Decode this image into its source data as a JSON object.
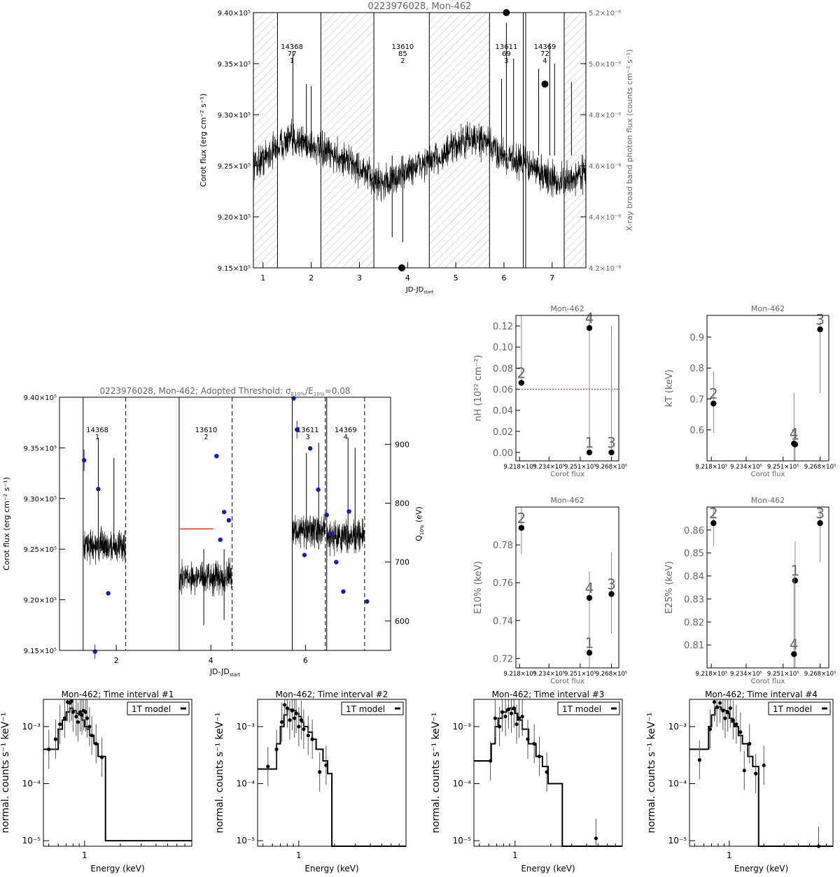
{
  "chart_data": [
    {
      "id": "lc",
      "type": "line",
      "title": "0223976028, Mon-462",
      "xlabel": "JD-JD",
      "xlabel_sub": "start",
      "ylabel": "Corot flux (erg cm⁻² s⁻¹)",
      "ylabel_right": "X-ray broad band photon flux (counts cm⁻² s⁻¹)",
      "xlim": [
        0.8,
        7.7
      ],
      "ylim": [
        915000,
        940000
      ],
      "ylim_right": [
        4.2e-06,
        5.2e-06
      ],
      "xticks": [
        "1",
        "2",
        "3",
        "4",
        "5",
        "6",
        "7"
      ],
      "yticks": [
        "9.15×10⁵",
        "9.20×10⁵",
        "9.25×10⁵",
        "9.30×10⁵",
        "9.35×10⁵",
        "9.40×10⁵"
      ],
      "yticks_right": [
        "4.2×10⁻⁶",
        "4.4×10⁻⁶",
        "4.6×10⁻⁶",
        "4.8×10⁻⁶",
        "5.0×10⁻⁶",
        "5.2×10⁻⁶"
      ],
      "hatched_gaps": [
        [
          0.8,
          1.3
        ],
        [
          2.2,
          3.3
        ],
        [
          4.45,
          5.7
        ],
        [
          7.25,
          7.7
        ]
      ],
      "segments": [
        {
          "label": [
            "14368",
            "77",
            "1"
          ],
          "x": 1.6
        },
        {
          "label": [
            "13610",
            "85",
            "2"
          ],
          "x": 3.9
        },
        {
          "label": [
            "13611",
            "69",
            "3"
          ],
          "x": 6.05
        },
        {
          "label": [
            "14369",
            "72",
            "4"
          ],
          "x": 6.85
        }
      ],
      "xray_points": [
        {
          "x": 3.88,
          "y": 4.2e-06
        },
        {
          "x": 6.05,
          "y": 5.2e-06
        },
        {
          "x": 6.85,
          "y": 4.92e-06
        }
      ]
    },
    {
      "id": "q10",
      "type": "line",
      "title": "0223976028, Mon-462; Adopted Threshold: σ",
      "title_sub1": "E10%",
      "title_mid": "/E",
      "title_sub2": "10%",
      "title_end": "=0.08",
      "xlabel": "JD-JD",
      "xlabel_sub": "start",
      "ylabel": "Corot flux (erg cm⁻² s⁻¹)",
      "ylabel_right": "Q",
      "ylabel_right_sub": "10%",
      "ylabel_right_unit": "(eV)",
      "xlim": [
        0.8,
        7.8
      ],
      "ylim": [
        915000,
        940000
      ],
      "ylim_right": [
        550,
        980
      ],
      "xticks": [
        "2",
        "4",
        "6"
      ],
      "yticks": [
        "9.15×10⁵",
        "9.20×10⁵",
        "9.25×10⁵",
        "9.30×10⁵",
        "9.35×10⁵",
        "9.40×10⁵"
      ],
      "yticks_right": [
        "600",
        "700",
        "800",
        "900"
      ],
      "segments": [
        {
          "label": [
            "14368",
            "1"
          ],
          "x": 1.6
        },
        {
          "label": [
            "13610",
            "2"
          ],
          "x": 3.9
        },
        {
          "label": [
            "13611",
            "3"
          ],
          "x": 6.05
        },
        {
          "label": [
            "14369",
            "4"
          ],
          "x": 6.85
        }
      ],
      "threshold_line": {
        "x": [
          3.35,
          4.05
        ],
        "y": 927000
      },
      "q_points": [
        {
          "x": 1.32,
          "y": 873,
          "err": 18
        },
        {
          "x": 1.62,
          "y": 824,
          "err": 0
        },
        {
          "x": 1.83,
          "y": 647,
          "err": 0
        },
        {
          "x": 1.55,
          "y": 548,
          "err": 12
        },
        {
          "x": 4.12,
          "y": 880,
          "err": 0
        },
        {
          "x": 4.2,
          "y": 738,
          "err": 0
        },
        {
          "x": 4.28,
          "y": 785,
          "err": 0
        },
        {
          "x": 4.38,
          "y": 771,
          "err": 0
        },
        {
          "x": 5.75,
          "y": 978,
          "err": 0
        },
        {
          "x": 5.82,
          "y": 925,
          "err": 15
        },
        {
          "x": 5.98,
          "y": 712,
          "err": 0
        },
        {
          "x": 6.1,
          "y": 893,
          "err": 0
        },
        {
          "x": 6.27,
          "y": 823,
          "err": 0
        },
        {
          "x": 6.45,
          "y": 780,
          "err": 0
        },
        {
          "x": 6.52,
          "y": 748,
          "err": 0
        },
        {
          "x": 6.65,
          "y": 700,
          "err": 0
        },
        {
          "x": 6.8,
          "y": 650,
          "err": 0
        },
        {
          "x": 6.92,
          "y": 786,
          "err": 0
        },
        {
          "x": 7.3,
          "y": 633,
          "err": 0
        }
      ]
    },
    {
      "id": "nh",
      "type": "scatter",
      "title": "Mon-462",
      "xlabel": "Corot flux",
      "ylabel": "nH (10²² cm⁻²)",
      "xlim": [
        921600,
        927200
      ],
      "ylim": [
        -0.008,
        0.13
      ],
      "xticks": [
        "9.218×10⁵",
        "9.234×10⁵",
        "9.251×10⁵",
        "9.268×10⁵"
      ],
      "yticks": [
        "0.00",
        "0.02",
        "0.04",
        "0.06",
        "0.08",
        "0.10",
        "0.12"
      ],
      "ref_line": 0.06,
      "points": [
        {
          "label": "2",
          "x": 921900,
          "y": 0.066,
          "lo": 0.066,
          "hi": 0.13
        },
        {
          "label": "4",
          "x": 925600,
          "y": 0.118,
          "lo": 0.0,
          "hi": 0.13
        },
        {
          "label": "1",
          "x": 925600,
          "y": 0.0,
          "lo": 0.0,
          "hi": 0.1
        },
        {
          "label": "3",
          "x": 926800,
          "y": 0.0,
          "lo": 0.0,
          "hi": 0.12
        }
      ]
    },
    {
      "id": "kt",
      "type": "scatter",
      "title": "Mon-462",
      "xlabel": "Corot flux",
      "ylabel": "kT (keV)",
      "xlim": [
        921600,
        927200
      ],
      "ylim": [
        0.5,
        0.97
      ],
      "xticks": [
        "9.218×10⁵",
        "9.234×10⁵",
        "9.251×10⁵",
        "9.268×10⁵"
      ],
      "yticks": [
        "0.6",
        "0.7",
        "0.8",
        "0.9"
      ],
      "points": [
        {
          "label": "2",
          "x": 921900,
          "y": 0.685,
          "lo": 0.59,
          "hi": 0.79
        },
        {
          "label": "4",
          "x": 925600,
          "y": 0.556,
          "lo": 0.5,
          "hi": 0.72
        },
        {
          "label": "1",
          "x": 925650,
          "y": 0.553,
          "lo": 0.5,
          "hi": 0.6
        },
        {
          "label": "3",
          "x": 926800,
          "y": 0.925,
          "lo": 0.72,
          "hi": 0.95
        }
      ]
    },
    {
      "id": "e10",
      "type": "scatter",
      "title": "Mon-462",
      "xlabel": "Corot flux",
      "ylabel": "E10% (keV)",
      "xlim": [
        921600,
        927200
      ],
      "ylim": [
        0.715,
        0.8
      ],
      "xticks": [
        "9.218×10⁵",
        "9.234×10⁵",
        "9.251×10⁵",
        "9.268×10⁵"
      ],
      "yticks": [
        "0.72",
        "0.74",
        "0.76",
        "0.78"
      ],
      "points": [
        {
          "label": "2",
          "x": 921900,
          "y": 0.789,
          "lo": 0.775,
          "hi": 0.8
        },
        {
          "label": "4",
          "x": 925600,
          "y": 0.752,
          "lo": 0.715,
          "hi": 0.766
        },
        {
          "label": "1",
          "x": 925600,
          "y": 0.723,
          "lo": 0.715,
          "hi": 0.73
        },
        {
          "label": "3",
          "x": 926800,
          "y": 0.754,
          "lo": 0.733,
          "hi": 0.776
        }
      ]
    },
    {
      "id": "e25",
      "type": "scatter",
      "title": "Mon-462",
      "xlabel": "Corot flux",
      "ylabel": "E25% (keV)",
      "xlim": [
        921600,
        927200
      ],
      "ylim": [
        0.8,
        0.87
      ],
      "xticks": [
        "9.218×10⁵",
        "9.234×10⁵",
        "9.251×10⁵",
        "9.268×10⁵"
      ],
      "yticks": [
        "0.81",
        "0.82",
        "0.83",
        "0.84",
        "0.85",
        "0.86"
      ],
      "points": [
        {
          "label": "2",
          "x": 921900,
          "y": 0.863,
          "lo": 0.853,
          "hi": 0.87
        },
        {
          "label": "1",
          "x": 925650,
          "y": 0.838,
          "lo": 0.8,
          "hi": 0.855
        },
        {
          "label": "4",
          "x": 925600,
          "y": 0.806,
          "lo": 0.8,
          "hi": 0.84
        },
        {
          "label": "3",
          "x": 926800,
          "y": 0.863,
          "lo": 0.846,
          "hi": 0.87
        }
      ]
    },
    {
      "id": "sp1",
      "type": "line",
      "title": "Mon-462; Time interval #1",
      "xlabel": "Energy (keV)",
      "ylabel": "normal. counts s⁻¹ keV⁻¹",
      "legend": "1T model",
      "xticks": [
        "1"
      ],
      "yticks": [
        "10⁻⁵",
        "10⁻⁴",
        "10⁻³"
      ],
      "xlim": [
        0.45,
        8
      ],
      "ylim": [
        8e-06,
        0.003
      ],
      "model_x": [
        0.45,
        0.55,
        0.6,
        0.65,
        0.7,
        0.75,
        0.8,
        0.85,
        0.9,
        0.95,
        1.0,
        1.05,
        1.1,
        1.2,
        1.3,
        1.5,
        8
      ],
      "model_y": [
        0.0004,
        0.0004,
        0.0009,
        0.0013,
        0.0018,
        0.0021,
        0.0019,
        0.0017,
        0.0016,
        0.0013,
        0.001,
        0.0009,
        0.0007,
        0.0005,
        0.0003,
        1e-05,
        1e-05
      ],
      "data": [
        [
          0.5,
          0.0004
        ],
        [
          0.57,
          0.0006
        ],
        [
          0.62,
          0.0011
        ],
        [
          0.68,
          0.0014
        ],
        [
          0.72,
          0.0027
        ],
        [
          0.75,
          0.0026
        ],
        [
          0.78,
          0.0028
        ],
        [
          0.8,
          0.0018
        ],
        [
          0.85,
          0.0015
        ],
        [
          0.88,
          0.0012
        ],
        [
          0.92,
          0.0018
        ],
        [
          0.95,
          0.0016
        ],
        [
          0.98,
          0.0019
        ],
        [
          1.02,
          0.0018
        ],
        [
          1.05,
          0.0014
        ],
        [
          1.1,
          0.001
        ],
        [
          1.15,
          0.0007
        ],
        [
          1.25,
          0.0005
        ],
        [
          1.4,
          0.00029
        ]
      ]
    },
    {
      "id": "sp2",
      "type": "line",
      "title": "Mon-462; Time interval #2",
      "xlabel": "Energy (keV)",
      "ylabel": "normal. counts s⁻¹ keV⁻¹",
      "legend": "1T model",
      "xticks": [
        "1"
      ],
      "yticks": [
        "10⁻⁵",
        "10⁻⁴",
        "10⁻³"
      ],
      "xlim": [
        0.45,
        8
      ],
      "ylim": [
        8e-06,
        0.003
      ],
      "model_x": [
        0.45,
        0.6,
        0.65,
        0.7,
        0.75,
        0.8,
        0.85,
        0.9,
        0.95,
        1.0,
        1.05,
        1.1,
        1.2,
        1.3,
        1.4,
        1.6,
        1.75,
        1.9,
        8
      ],
      "model_y": [
        0.00018,
        0.00018,
        0.0005,
        0.001,
        0.0016,
        0.002,
        0.002,
        0.0019,
        0.0017,
        0.0015,
        0.0012,
        0.001,
        0.0008,
        0.0006,
        0.0004,
        0.00025,
        0.00015,
        5e-06,
        5e-06
      ],
      "data": [
        [
          0.55,
          0.0002
        ],
        [
          0.65,
          0.0004
        ],
        [
          0.72,
          0.0012
        ],
        [
          0.76,
          0.0024
        ],
        [
          0.8,
          0.0021
        ],
        [
          0.84,
          0.0013
        ],
        [
          0.88,
          0.0019
        ],
        [
          0.92,
          0.0014
        ],
        [
          0.95,
          0.0017
        ],
        [
          1.0,
          0.001
        ],
        [
          1.05,
          0.0013
        ],
        [
          1.1,
          0.0009
        ],
        [
          1.2,
          0.0007
        ],
        [
          1.3,
          0.0006
        ],
        [
          1.5,
          0.00016
        ],
        [
          1.7,
          0.00021
        ]
      ]
    },
    {
      "id": "sp3",
      "type": "line",
      "title": "Mon-462; Time interval #3",
      "xlabel": "Energy (keV)",
      "ylabel": "normal. counts s⁻¹ keV⁻¹",
      "legend": "1T model",
      "xticks": [
        "1"
      ],
      "yticks": [
        "10⁻⁵",
        "10⁻⁴",
        "10⁻³"
      ],
      "xlim": [
        0.45,
        8
      ],
      "ylim": [
        8e-06,
        0.003
      ],
      "model_x": [
        0.45,
        0.6,
        0.63,
        0.68,
        0.72,
        0.78,
        0.85,
        0.9,
        0.95,
        1.0,
        1.05,
        1.15,
        1.3,
        1.5,
        1.7,
        1.9,
        2.2,
        2.5,
        8
      ],
      "model_y": [
        0.00025,
        0.00025,
        0.0005,
        0.001,
        0.0014,
        0.0018,
        0.002,
        0.0021,
        0.002,
        0.0017,
        0.0013,
        0.0009,
        0.0005,
        0.0003,
        0.0002,
        0.0001,
        0.0001,
        5e-06,
        5e-06
      ],
      "data": [
        [
          0.62,
          0.00025
        ],
        [
          0.68,
          0.0014
        ],
        [
          0.74,
          0.001
        ],
        [
          0.78,
          0.0018
        ],
        [
          0.83,
          0.0015
        ],
        [
          0.88,
          0.002
        ],
        [
          0.93,
          0.0017
        ],
        [
          0.98,
          0.0021
        ],
        [
          1.03,
          0.0011
        ],
        [
          1.08,
          0.0014
        ],
        [
          1.15,
          0.0015
        ],
        [
          1.28,
          0.0006
        ],
        [
          1.45,
          0.0005
        ],
        [
          1.6,
          0.0003
        ],
        [
          1.85,
          0.00016
        ],
        [
          4.8,
          1.1e-05
        ]
      ]
    },
    {
      "id": "sp4",
      "type": "line",
      "title": "Mon-462; Time interval #4",
      "xlabel": "Energy (keV)",
      "ylabel": "normal. counts s⁻¹ keV⁻¹",
      "legend": "1T model",
      "xticks": [
        "1"
      ],
      "yticks": [
        "10⁻⁵",
        "10⁻⁴",
        "10⁻³"
      ],
      "xlim": [
        0.45,
        8
      ],
      "ylim": [
        8e-06,
        0.003
      ],
      "model_x": [
        0.45,
        0.62,
        0.66,
        0.7,
        0.75,
        0.8,
        0.85,
        0.9,
        0.95,
        1.0,
        1.05,
        1.1,
        1.2,
        1.3,
        1.45,
        1.6,
        1.8,
        8
      ],
      "model_y": [
        0.0004,
        0.0004,
        0.001,
        0.0016,
        0.0021,
        0.0022,
        0.002,
        0.0019,
        0.0017,
        0.0014,
        0.0012,
        0.001,
        0.0007,
        0.0005,
        0.0003,
        0.0002,
        8e-06,
        8e-06
      ],
      "data": [
        [
          0.55,
          0.00026
        ],
        [
          0.68,
          0.0009
        ],
        [
          0.74,
          0.0027
        ],
        [
          0.78,
          0.0022
        ],
        [
          0.83,
          0.0026
        ],
        [
          0.88,
          0.0019
        ],
        [
          0.92,
          0.0014
        ],
        [
          0.97,
          0.0018
        ],
        [
          1.02,
          0.0021
        ],
        [
          1.08,
          0.0013
        ],
        [
          1.15,
          0.0011
        ],
        [
          1.25,
          0.0008
        ],
        [
          1.35,
          0.00017
        ],
        [
          1.5,
          0.0005
        ],
        [
          1.7,
          0.00015
        ],
        [
          2.0,
          0.00021
        ],
        [
          6.0,
          8e-06
        ]
      ]
    }
  ]
}
